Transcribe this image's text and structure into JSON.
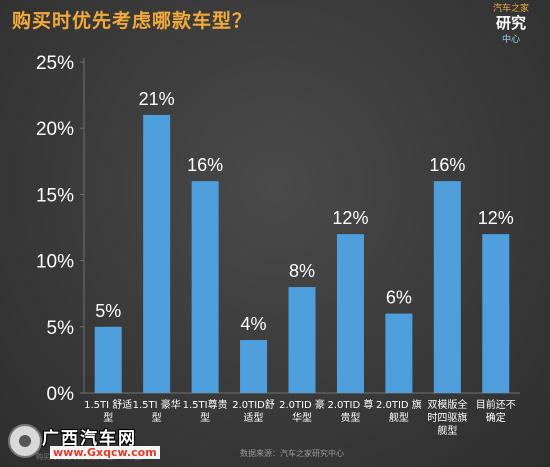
{
  "title": "购买时优先考虑哪款车型？",
  "logo": {
    "line1": "汽车之家",
    "line2": "研究",
    "line3": "中心"
  },
  "source": "数据来源：汽车之家研究中心",
  "note": "购买时优先考虑哪款车型？（单选）",
  "watermark": {
    "title": "广西汽车网",
    "url": "www.Gxqcw.com"
  },
  "colors": {
    "bar": "#4f9fdc",
    "title": "#f2a93b",
    "axis_text": "#ffffff",
    "grid": "#707070"
  },
  "chart_data": {
    "type": "bar",
    "title": "购买时优先考虑哪款车型？",
    "categories": [
      "1.5TI 舒适型",
      "1.5TI 豪华型",
      "1.5TI尊贵型",
      "2.0TID舒适型",
      "2.0TID 豪华型",
      "2.0TID 尊贵型",
      "2.0TID 旗舰型",
      "双模版全时四驱旗舰型",
      "目前还不确定"
    ],
    "category_lines": [
      [
        "1.5TI 舒适",
        "型"
      ],
      [
        "1.5TI 豪华",
        "型"
      ],
      [
        "1.5TI尊贵",
        "型"
      ],
      [
        "2.0TID舒",
        "适型"
      ],
      [
        "2.0TID 豪",
        "华型"
      ],
      [
        "2.0TID 尊",
        "贵型"
      ],
      [
        "2.0TID 旗",
        "舰型"
      ],
      [
        "双模版全",
        "时四驱旗",
        "舰型"
      ],
      [
        "目前还不",
        "确定"
      ]
    ],
    "values": [
      5,
      21,
      16,
      4,
      8,
      12,
      6,
      16,
      12
    ],
    "value_labels": [
      "5%",
      "21%",
      "16%",
      "4%",
      "8%",
      "12%",
      "6%",
      "16%",
      "12%"
    ],
    "ylim": [
      0,
      25
    ],
    "yticks": [
      0,
      5,
      10,
      15,
      20,
      25
    ],
    "ytick_labels": [
      "0%",
      "5%",
      "10%",
      "15%",
      "20%",
      "25%"
    ],
    "xlabel": "",
    "ylabel": "",
    "grid": false
  }
}
